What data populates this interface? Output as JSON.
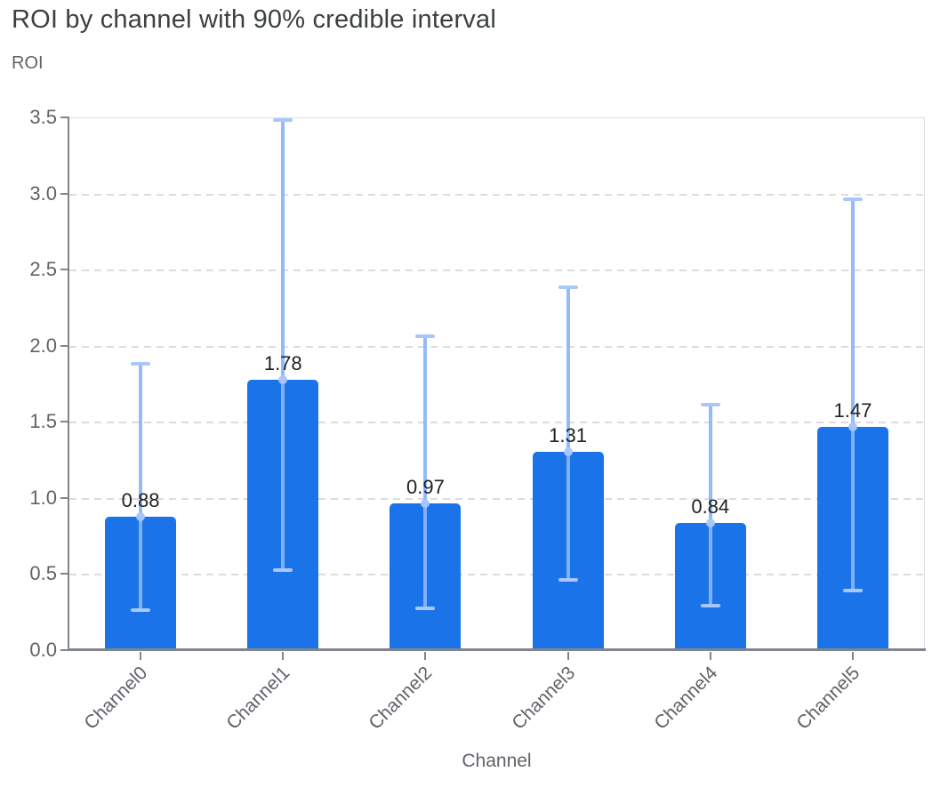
{
  "title": "ROI by channel with 90% credible interval",
  "chart_data": {
    "type": "bar",
    "title": "ROI by channel with 90% credible interval",
    "xlabel": "Channel",
    "ylabel": "ROI",
    "categories": [
      "Channel0",
      "Channel1",
      "Channel2",
      "Channel3",
      "Channel4",
      "Channel5"
    ],
    "values": [
      0.88,
      1.78,
      0.97,
      1.31,
      0.84,
      1.47
    ],
    "value_labels": [
      "0.88",
      "1.78",
      "0.97",
      "1.31",
      "0.84",
      "1.47"
    ],
    "error_bars": {
      "kind": "90% credible interval",
      "low": [
        0.27,
        0.53,
        0.28,
        0.47,
        0.3,
        0.4
      ],
      "high": [
        1.89,
        3.49,
        2.07,
        2.39,
        1.62,
        2.97
      ]
    },
    "ylim": [
      0.0,
      3.5
    ],
    "ytick_step": 0.5,
    "ytick_labels": [
      "0.0",
      "0.5",
      "1.0",
      "1.5",
      "2.0",
      "2.5",
      "3.0",
      "3.5"
    ],
    "grid": "horizontal-dashed",
    "legend": "none",
    "x_label_rotation_deg": -45,
    "colors": {
      "bar": "#1a73e8",
      "interval_stem": "#8ab4f8",
      "interval_cap": "#a8c7fa",
      "mean_dot": "#a8c7fa",
      "gridline": "#dadce0",
      "axis_line": "#80868b",
      "tick_text": "#5f6368",
      "title_text": "#3c4043",
      "value_text": "#202124",
      "background": "#ffffff"
    }
  }
}
